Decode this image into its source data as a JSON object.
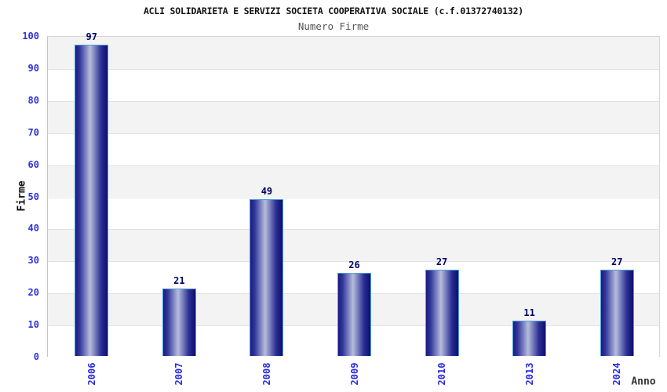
{
  "chart_data": {
    "type": "bar",
    "title": "ACLI SOLIDARIETA E SERVIZI SOCIETA COOPERATIVA SOCIALE (c.f.01372740132)",
    "subtitle": "Numero Firme",
    "xlabel": "Anno",
    "ylabel": "Firme",
    "categories": [
      "2006",
      "2007",
      "2008",
      "2009",
      "2010",
      "2013",
      "2024"
    ],
    "values": [
      97,
      21,
      49,
      26,
      27,
      11,
      27
    ],
    "ylim": [
      0,
      100
    ],
    "ytick_step": 10,
    "yticks": [
      0,
      10,
      20,
      30,
      40,
      50,
      60,
      70,
      80,
      90,
      100
    ],
    "legend": "none",
    "grid": "horizontal-bands-alternating",
    "colors": {
      "bar_dark": "#1a1a82",
      "bar_light": "#b6bddc",
      "bar_border": "#4f9fe0",
      "tick_label_blue": "#2a2ae0",
      "value_label_navy": "#000066",
      "band_gray": "#f3f3f3",
      "band_white": "#ffffff",
      "grid_line": "#e2e2e2",
      "title_color": "#111111",
      "subtitle_color": "#555555",
      "xlabel_color": "#333333"
    }
  }
}
